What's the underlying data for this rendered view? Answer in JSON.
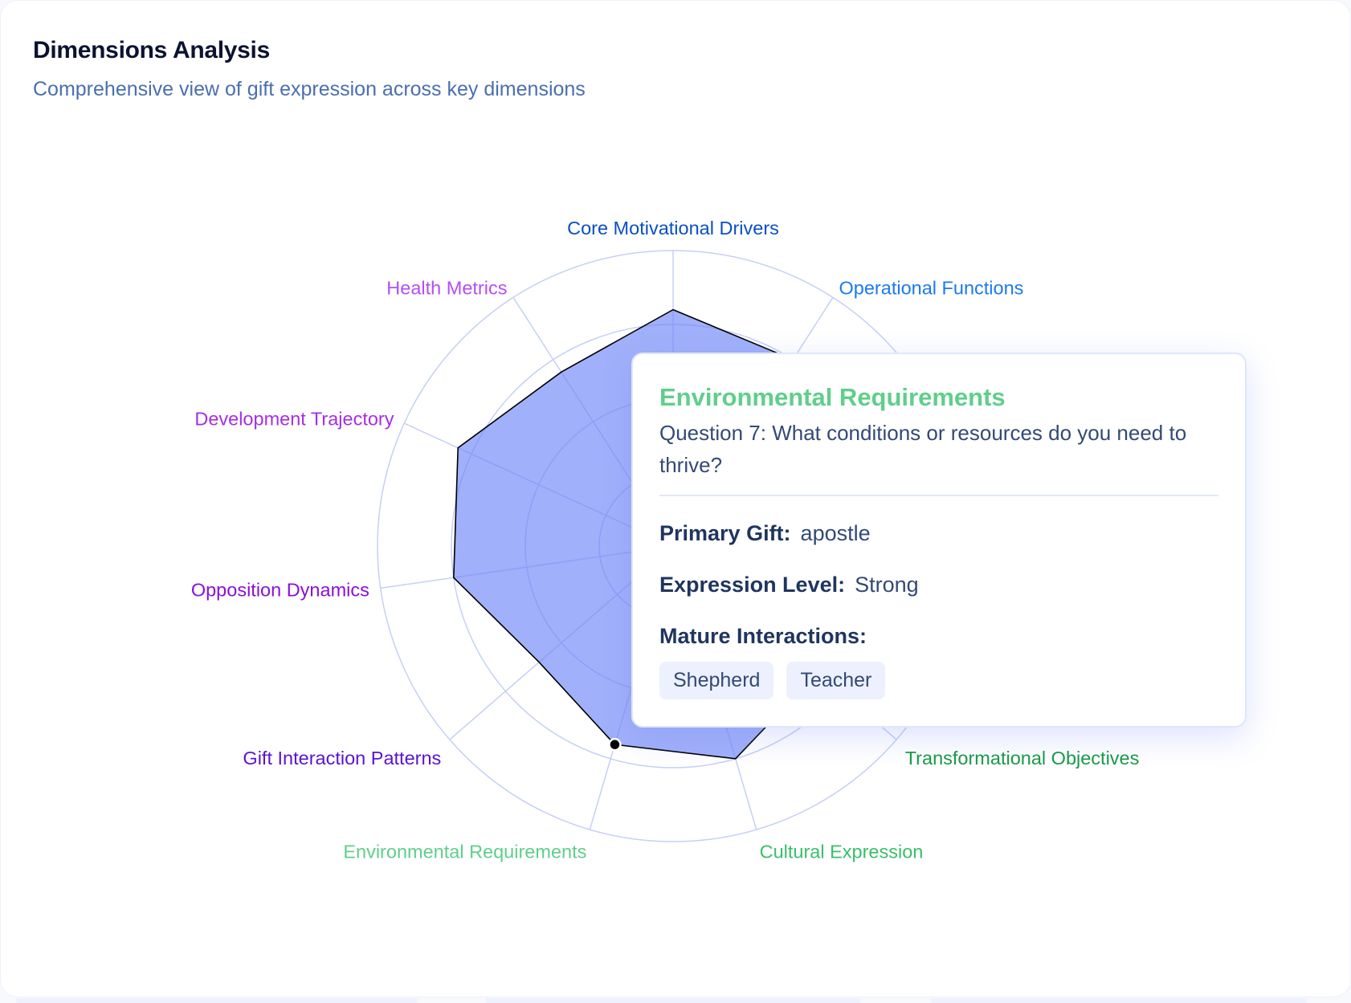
{
  "header": {
    "title": "Dimensions Analysis",
    "subtitle": "Comprehensive view of gift expression across key dimensions"
  },
  "chart_data": {
    "type": "radar",
    "value_range": [
      0,
      100
    ],
    "grid_rings": 4,
    "fill_color": "#6f86f7",
    "stroke_color": "#000000",
    "grid_color": "#c5d0f5",
    "axes": [
      {
        "label": "Core Motivational Drivers",
        "color": "#0a4fc6",
        "value": 80
      },
      {
        "label": "Operational Functions",
        "color": "#1a7af0",
        "value": 75
      },
      {
        "label": "",
        "color": "#1a7af0",
        "value": null
      },
      {
        "label": "",
        "color": "#1a9a45",
        "value": null
      },
      {
        "label": "Transformational Objectives",
        "color": "#1a9a45",
        "value": 65
      },
      {
        "label": "Cultural Expression",
        "color": "#38c06a",
        "value": 75
      },
      {
        "label": "Environmental Requirements",
        "color": "#5fcf8a",
        "value": 70
      },
      {
        "label": "Gift Interaction Patterns",
        "color": "#5b12d4",
        "value": 60
      },
      {
        "label": "Opposition Dynamics",
        "color": "#8a10d8",
        "value": 75
      },
      {
        "label": "Development Trajectory",
        "color": "#a52ee8",
        "value": 80
      },
      {
        "label": "Health Metrics",
        "color": "#b44ef5",
        "value": 70
      }
    ],
    "active_index": 6
  },
  "tooltip": {
    "title": "Environmental Requirements",
    "title_color": "#5fcf8a",
    "question": "Question 7: What conditions or resources do you need to thrive?",
    "primary_gift_label": "Primary Gift:",
    "primary_gift": "apostle",
    "expression_level_label": "Expression Level:",
    "expression_level": "Strong",
    "mature_interactions_label": "Mature Interactions:",
    "mature_interactions": [
      "Shepherd",
      "Teacher"
    ]
  }
}
